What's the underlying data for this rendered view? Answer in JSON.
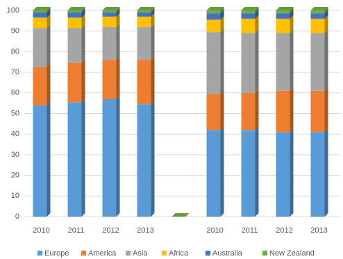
{
  "chart_data": {
    "type": "bar3d_stacked",
    "categories": [
      "2010",
      "2011",
      "2012",
      "2013",
      null,
      "2010",
      "2011",
      "2012",
      "2013"
    ],
    "series": [
      {
        "name": "Europe",
        "color": "#5b9bd5",
        "values": [
          54,
          55.5,
          57,
          54.5,
          0,
          42,
          42,
          41,
          41
        ]
      },
      {
        "name": "America",
        "color": "#ed7d31",
        "values": [
          18.5,
          19,
          19,
          21.5,
          0,
          17.5,
          18,
          20,
          20
        ]
      },
      {
        "name": "Asia",
        "color": "#a5a5a5",
        "values": [
          19,
          17,
          16,
          16,
          0,
          30,
          29,
          28,
          28
        ]
      },
      {
        "name": "Africa",
        "color": "#ffc000",
        "values": [
          5,
          5,
          5,
          5,
          0,
          6,
          7,
          7,
          7
        ]
      },
      {
        "name": "Australia",
        "color": "#4472c4",
        "values": [
          2.5,
          2.5,
          2,
          2,
          0,
          3,
          2.5,
          2.5,
          2.5
        ]
      },
      {
        "name": "New Zealand",
        "color": "#70ad47",
        "values": [
          1,
          1,
          1,
          1,
          0,
          1.5,
          1.5,
          1.5,
          1.5
        ]
      }
    ],
    "ylim": [
      0,
      100
    ],
    "yticks": [
      0,
      10,
      20,
      30,
      40,
      50,
      60,
      70,
      80,
      90,
      100
    ],
    "grid": true,
    "legend": "bottom"
  }
}
